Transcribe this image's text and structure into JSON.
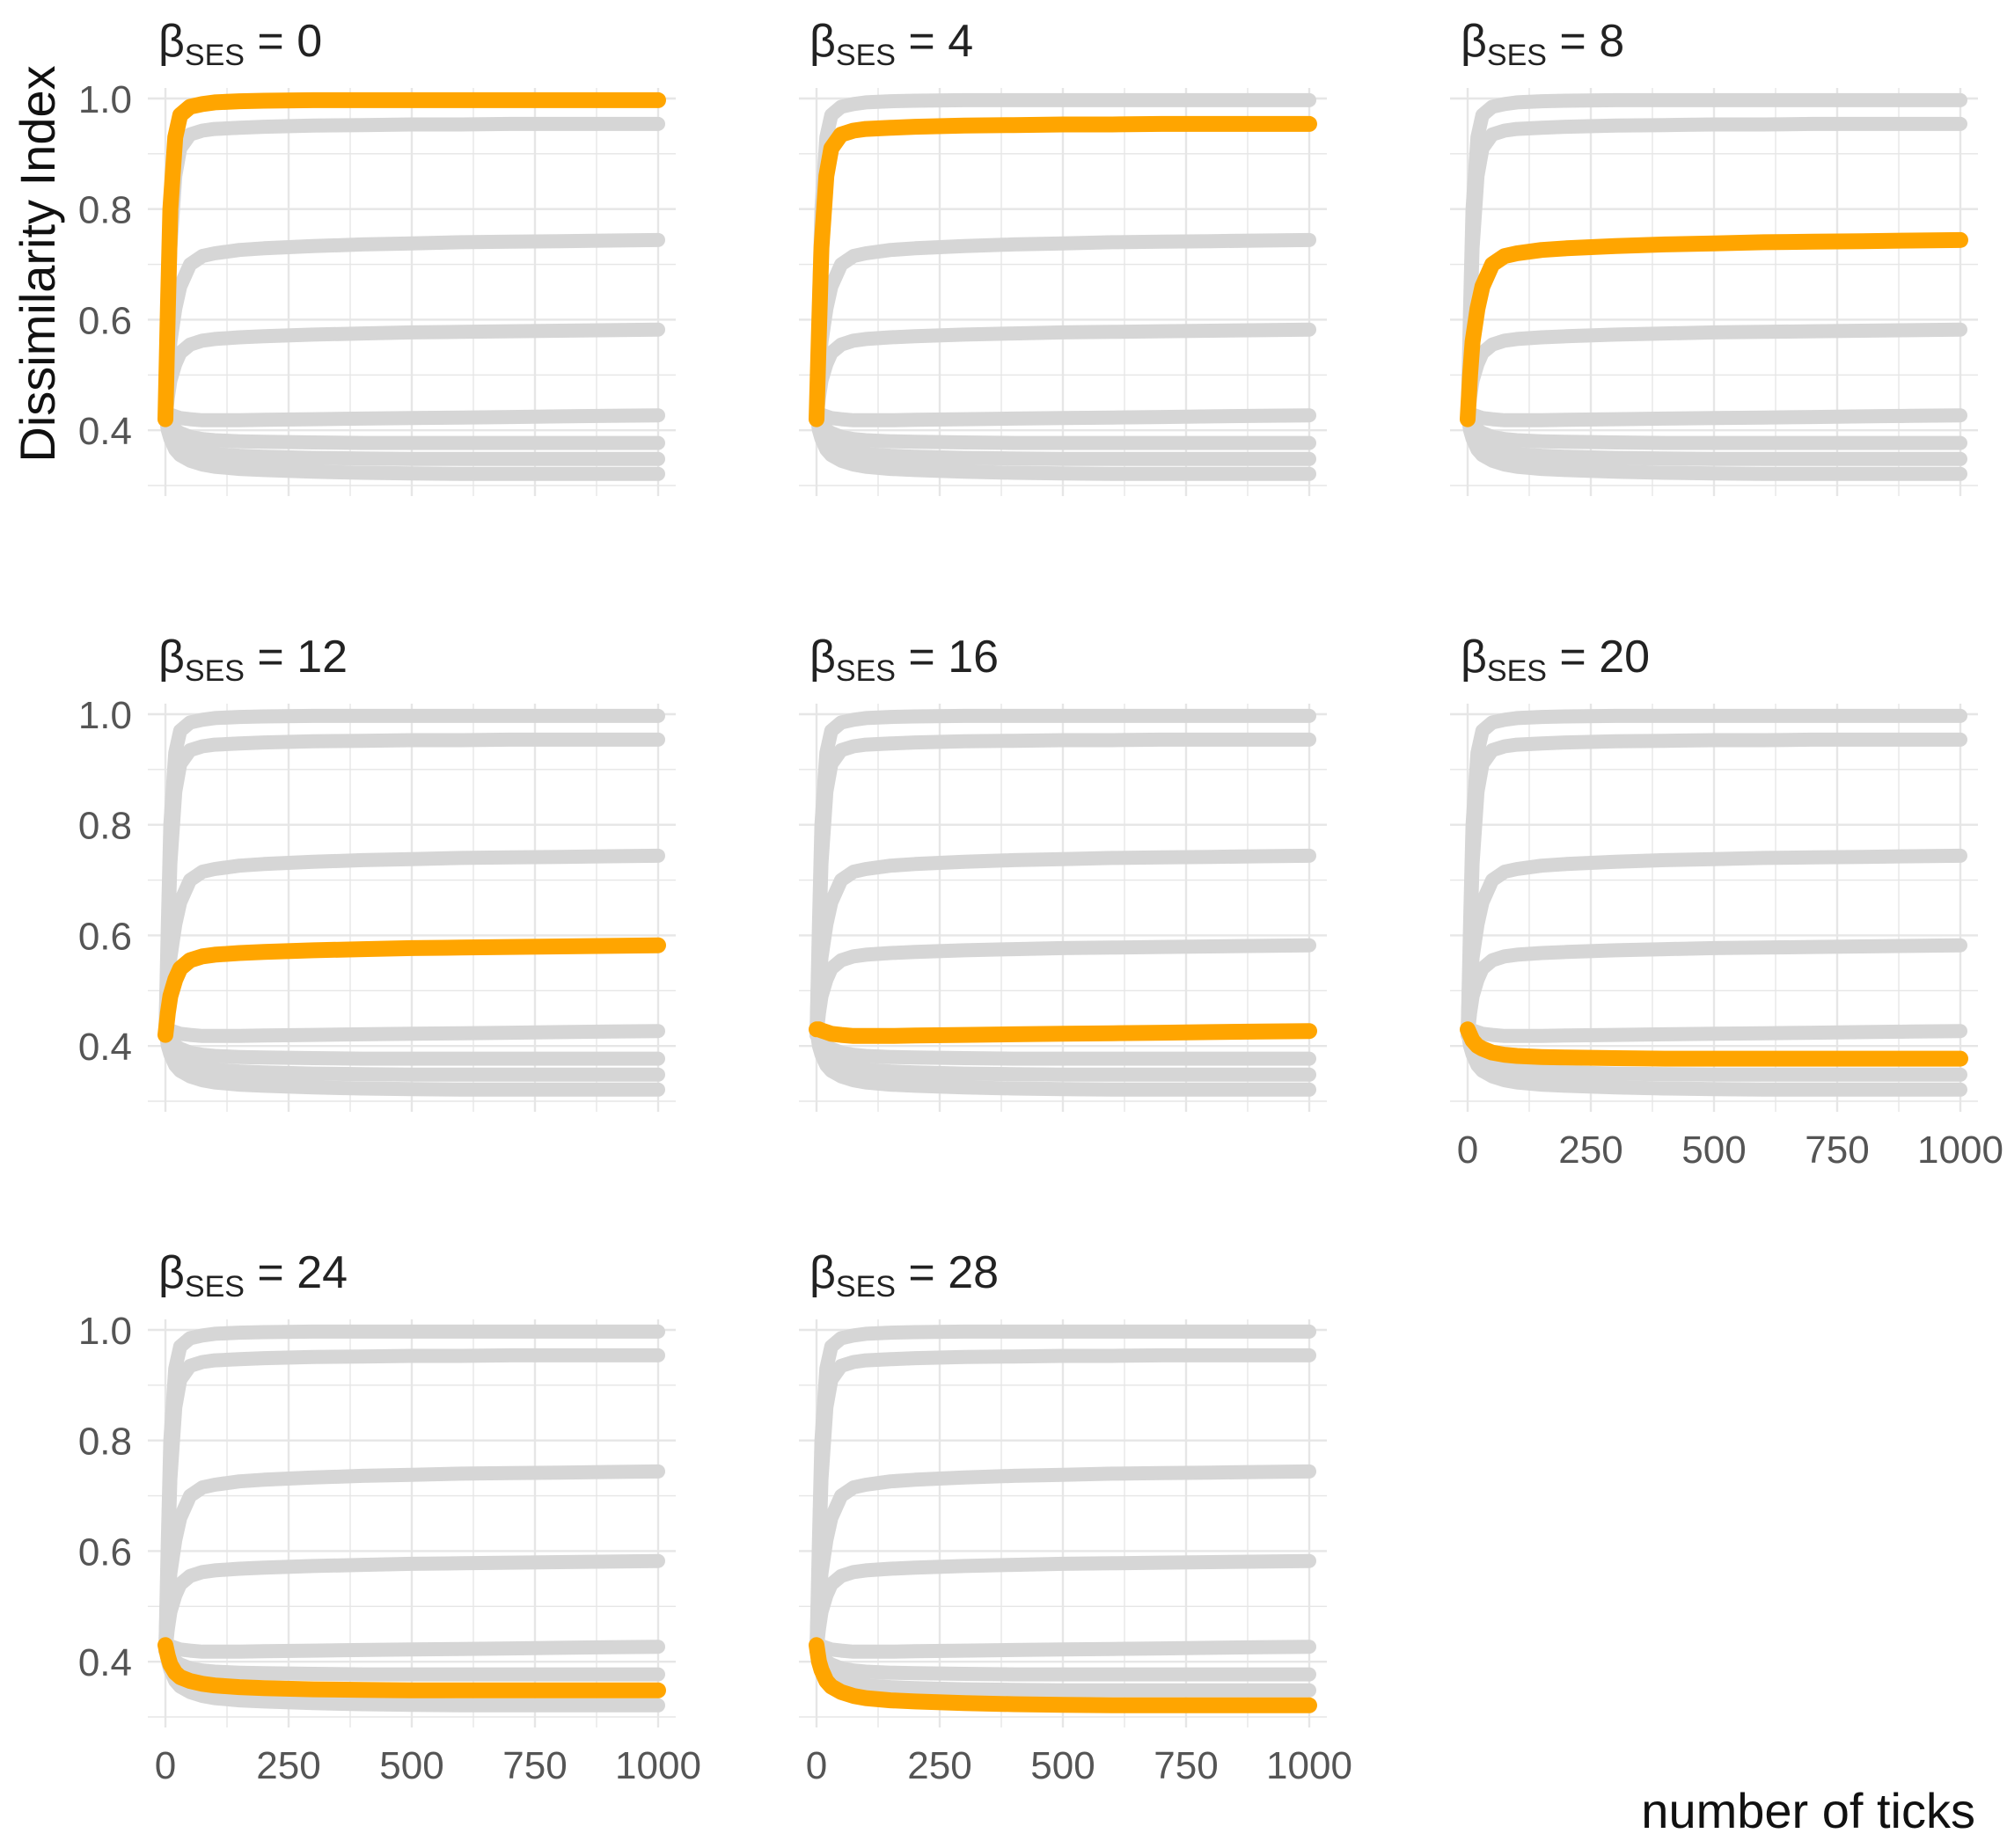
{
  "figure": {
    "ylabel": "Dissimilarity Index",
    "xlabel": "number of ticks"
  },
  "colors": {
    "highlight": "#FFA500",
    "background_series": "#D6D6D6",
    "grid": "#E6E6E6",
    "tick_text": "#555555"
  },
  "chart_data": {
    "type": "line",
    "title_prefix": "β",
    "title_subscript": "SES",
    "xlim": [
      0,
      1000
    ],
    "ylim": [
      0.3,
      1.0
    ],
    "x_ticks": [
      0,
      250,
      500,
      750,
      1000
    ],
    "y_ticks": [
      0.4,
      0.6,
      0.8,
      1.0
    ],
    "y_tick_labels": [
      "0.4",
      "0.6",
      "0.8",
      "1.0"
    ],
    "x": [
      0,
      5,
      10,
      20,
      30,
      50,
      75,
      100,
      150,
      200,
      300,
      400,
      500,
      600,
      700,
      800,
      900,
      1000
    ],
    "series": [
      {
        "name": "βSES = 0",
        "values": [
          0.42,
          0.62,
          0.8,
          0.93,
          0.97,
          0.985,
          0.99,
          0.993,
          0.995,
          0.996,
          0.997,
          0.997,
          0.997,
          0.997,
          0.997,
          0.997,
          0.997,
          0.997
        ]
      },
      {
        "name": "βSES = 4",
        "values": [
          0.42,
          0.58,
          0.73,
          0.86,
          0.91,
          0.935,
          0.942,
          0.945,
          0.947,
          0.949,
          0.951,
          0.952,
          0.953,
          0.953,
          0.954,
          0.954,
          0.954,
          0.954
        ]
      },
      {
        "name": "βSES = 8",
        "values": [
          0.42,
          0.5,
          0.56,
          0.62,
          0.66,
          0.7,
          0.715,
          0.72,
          0.726,
          0.729,
          0.733,
          0.736,
          0.738,
          0.74,
          0.741,
          0.742,
          0.743,
          0.744
        ]
      },
      {
        "name": "βSES = 12",
        "values": [
          0.42,
          0.46,
          0.49,
          0.52,
          0.54,
          0.555,
          0.562,
          0.565,
          0.568,
          0.57,
          0.573,
          0.575,
          0.577,
          0.578,
          0.579,
          0.58,
          0.581,
          0.582
        ]
      },
      {
        "name": "βSES = 16",
        "values": [
          0.43,
          0.43,
          0.428,
          0.425,
          0.422,
          0.42,
          0.418,
          0.418,
          0.418,
          0.419,
          0.42,
          0.421,
          0.422,
          0.423,
          0.424,
          0.425,
          0.426,
          0.427
        ]
      },
      {
        "name": "βSES = 20",
        "values": [
          0.43,
          0.42,
          0.41,
          0.4,
          0.395,
          0.388,
          0.384,
          0.382,
          0.38,
          0.379,
          0.378,
          0.377,
          0.377,
          0.377,
          0.377,
          0.377,
          0.377,
          0.377
        ]
      },
      {
        "name": "βSES = 24",
        "values": [
          0.43,
          0.41,
          0.395,
          0.38,
          0.372,
          0.365,
          0.36,
          0.357,
          0.354,
          0.352,
          0.35,
          0.349,
          0.348,
          0.348,
          0.348,
          0.348,
          0.348,
          0.348
        ]
      },
      {
        "name": "βSES = 28",
        "values": [
          0.43,
          0.4,
          0.385,
          0.365,
          0.355,
          0.345,
          0.338,
          0.334,
          0.33,
          0.328,
          0.325,
          0.323,
          0.322,
          0.321,
          0.321,
          0.321,
          0.321,
          0.321
        ]
      }
    ],
    "facets": [
      {
        "beta": "0",
        "highlight_index": 0
      },
      {
        "beta": "4",
        "highlight_index": 1
      },
      {
        "beta": "8",
        "highlight_index": 2
      },
      {
        "beta": "12",
        "highlight_index": 3
      },
      {
        "beta": "16",
        "highlight_index": 4
      },
      {
        "beta": "20",
        "highlight_index": 5
      },
      {
        "beta": "24",
        "highlight_index": 6
      },
      {
        "beta": "28",
        "highlight_index": 7
      }
    ]
  }
}
